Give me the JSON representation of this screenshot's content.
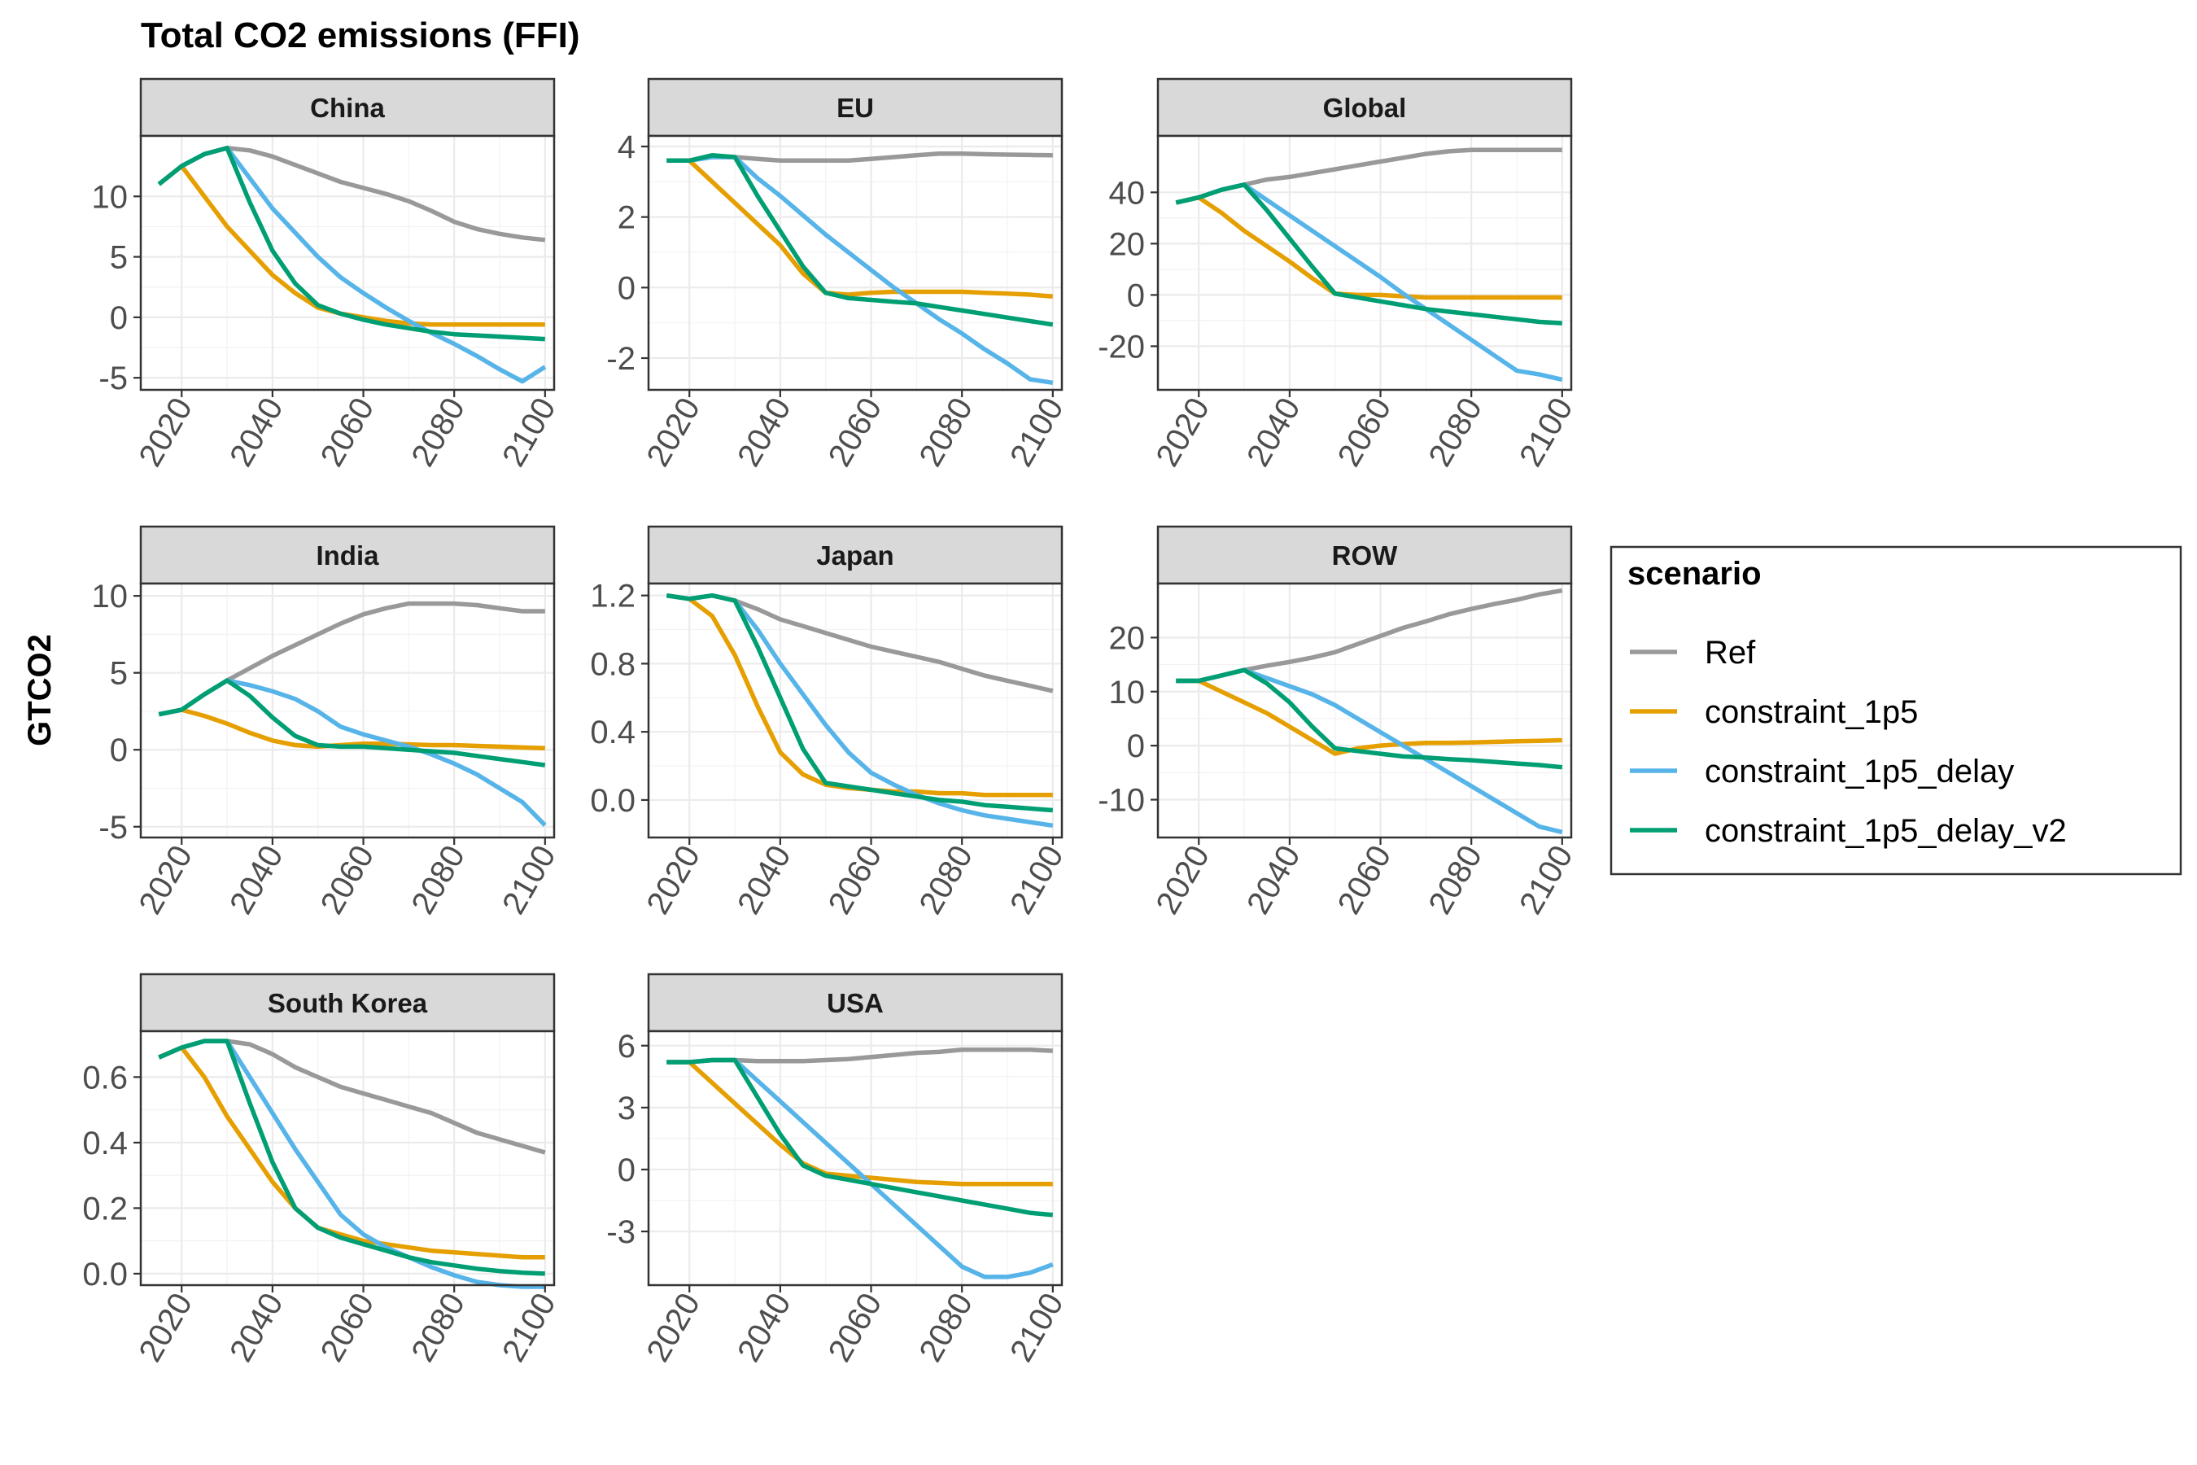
{
  "chart_data": {
    "type": "line",
    "title": "Total CO2 emissions (FFI)",
    "ylabel": "GTCO2",
    "xlabel": "",
    "x": [
      2015,
      2020,
      2025,
      2030,
      2035,
      2040,
      2045,
      2050,
      2055,
      2060,
      2065,
      2070,
      2075,
      2080,
      2085,
      2090,
      2095,
      2100
    ],
    "xticks": [
      2020,
      2040,
      2060,
      2080,
      2100
    ],
    "xlim": [
      2011,
      2102
    ],
    "grid": true,
    "legend": {
      "title": "scenario",
      "position": "right",
      "entries": [
        "Ref",
        "constraint_1p5",
        "constraint_1p5_delay",
        "constraint_1p5_delay_v2"
      ]
    },
    "colors": {
      "Ref": "#999999",
      "constraint_1p5": "#E69F00",
      "constraint_1p5_delay": "#56B4E9",
      "constraint_1p5_delay_v2": "#009E73"
    },
    "panels": [
      {
        "name": "China",
        "ylim": [
          -6,
          15
        ],
        "yticks": [
          -5,
          0,
          5,
          10
        ],
        "ytick_labels": [
          "-5",
          "0",
          "5",
          "10"
        ],
        "series": [
          {
            "name": "Ref",
            "values": [
              11,
              12.5,
              13.5,
              14,
              13.8,
              13.3,
              12.6,
              11.9,
              11.2,
              10.7,
              10.2,
              9.6,
              8.8,
              7.9,
              7.3,
              6.9,
              6.6,
              6.4
            ]
          },
          {
            "name": "constraint_1p5",
            "values": [
              11,
              12.5,
              10,
              7.5,
              5.5,
              3.5,
              2,
              0.8,
              0.3,
              0,
              -0.3,
              -0.5,
              -0.6,
              -0.6,
              -0.6,
              -0.6,
              -0.6,
              -0.6
            ]
          },
          {
            "name": "constraint_1p5_delay",
            "values": [
              11,
              12.5,
              13.5,
              14,
              11.5,
              9,
              7,
              5,
              3.3,
              2,
              0.8,
              -0.3,
              -1.3,
              -2.2,
              -3.2,
              -4.3,
              -5.3,
              -4.1
            ]
          },
          {
            "name": "constraint_1p5_delay_v2",
            "values": [
              11,
              12.5,
              13.5,
              14,
              9.5,
              5.5,
              2.8,
              1,
              0.3,
              -0.2,
              -0.6,
              -0.9,
              -1.2,
              -1.4,
              -1.5,
              -1.6,
              -1.7,
              -1.8
            ]
          }
        ]
      },
      {
        "name": "EU",
        "ylim": [
          -2.9,
          4.3
        ],
        "yticks": [
          -2,
          0,
          2,
          4
        ],
        "ytick_labels": [
          "-2",
          "0",
          "2",
          "4"
        ],
        "series": [
          {
            "name": "Ref",
            "values": [
              3.6,
              3.6,
              3.7,
              3.7,
              3.65,
              3.6,
              3.6,
              3.6,
              3.6,
              3.65,
              3.7,
              3.75,
              3.8,
              3.8,
              3.78,
              3.77,
              3.76,
              3.75
            ]
          },
          {
            "name": "constraint_1p5",
            "values": [
              3.6,
              3.6,
              3.0,
              2.4,
              1.8,
              1.2,
              0.4,
              -0.15,
              -0.2,
              -0.15,
              -0.12,
              -0.12,
              -0.12,
              -0.12,
              -0.15,
              -0.17,
              -0.2,
              -0.25
            ]
          },
          {
            "name": "constraint_1p5_delay",
            "values": [
              3.6,
              3.6,
              3.7,
              3.7,
              3.1,
              2.6,
              2.05,
              1.5,
              1.0,
              0.5,
              0.0,
              -0.45,
              -0.9,
              -1.3,
              -1.75,
              -2.15,
              -2.6,
              -2.7
            ]
          },
          {
            "name": "constraint_1p5_delay_v2",
            "values": [
              3.6,
              3.6,
              3.75,
              3.7,
              2.6,
              1.6,
              0.6,
              -0.15,
              -0.3,
              -0.35,
              -0.4,
              -0.45,
              -0.55,
              -0.65,
              -0.75,
              -0.85,
              -0.95,
              -1.05
            ]
          }
        ]
      },
      {
        "name": "Global",
        "ylim": [
          -37,
          62
        ],
        "yticks": [
          -20,
          0,
          20,
          40
        ],
        "ytick_labels": [
          "-20",
          "0",
          "20",
          "40"
        ],
        "series": [
          {
            "name": "Ref",
            "values": [
              36,
              38,
              41,
              43,
              45,
              46,
              47.5,
              49,
              50.5,
              52,
              53.5,
              55,
              56,
              56.5,
              56.5,
              56.5,
              56.5,
              56.5
            ]
          },
          {
            "name": "constraint_1p5",
            "values": [
              36,
              38,
              32,
              25,
              19,
              13,
              6.5,
              0.5,
              0,
              0,
              -0.5,
              -1,
              -1,
              -1,
              -1,
              -1,
              -1,
              -1
            ]
          },
          {
            "name": "constraint_1p5_delay",
            "values": [
              36,
              38,
              41,
              43,
              37,
              31,
              25,
              19,
              13,
              7,
              0.5,
              -5.5,
              -11.5,
              -17.5,
              -23.5,
              -29.5,
              -31,
              -33
            ]
          },
          {
            "name": "constraint_1p5_delay_v2",
            "values": [
              36,
              38,
              41,
              43,
              33,
              22,
              11,
              0.5,
              -1,
              -2.5,
              -4,
              -5.5,
              -6.5,
              -7.5,
              -8.5,
              -9.5,
              -10.5,
              -11
            ]
          }
        ]
      },
      {
        "name": "India",
        "ylim": [
          -5.7,
          10.8
        ],
        "yticks": [
          -5,
          0,
          5,
          10
        ],
        "ytick_labels": [
          "-5",
          "0",
          "5",
          "10"
        ],
        "series": [
          {
            "name": "Ref",
            "values": [
              2.3,
              2.6,
              3.6,
              4.5,
              5.3,
              6.1,
              6.8,
              7.5,
              8.2,
              8.8,
              9.2,
              9.5,
              9.5,
              9.5,
              9.4,
              9.2,
              9.0,
              9.0
            ]
          },
          {
            "name": "constraint_1p5",
            "values": [
              2.3,
              2.6,
              2.2,
              1.7,
              1.1,
              0.6,
              0.3,
              0.2,
              0.3,
              0.4,
              0.4,
              0.35,
              0.3,
              0.3,
              0.25,
              0.2,
              0.15,
              0.1
            ]
          },
          {
            "name": "constraint_1p5_delay",
            "values": [
              2.3,
              2.6,
              3.6,
              4.5,
              4.2,
              3.8,
              3.3,
              2.5,
              1.5,
              1.0,
              0.6,
              0.2,
              -0.3,
              -0.9,
              -1.6,
              -2.5,
              -3.4,
              -4.9
            ]
          },
          {
            "name": "constraint_1p5_delay_v2",
            "values": [
              2.3,
              2.6,
              3.6,
              4.5,
              3.5,
              2.1,
              0.9,
              0.3,
              0.2,
              0.2,
              0.1,
              0.0,
              -0.1,
              -0.2,
              -0.4,
              -0.6,
              -0.8,
              -1.0
            ]
          }
        ]
      },
      {
        "name": "Japan",
        "ylim": [
          -0.22,
          1.27
        ],
        "yticks": [
          0.0,
          0.4,
          0.8,
          1.2
        ],
        "ytick_labels": [
          "0.0",
          "0.4",
          "0.8",
          "1.2"
        ],
        "series": [
          {
            "name": "Ref",
            "values": [
              1.2,
              1.18,
              1.2,
              1.17,
              1.12,
              1.06,
              1.02,
              0.98,
              0.94,
              0.9,
              0.87,
              0.84,
              0.81,
              0.77,
              0.73,
              0.7,
              0.67,
              0.64
            ]
          },
          {
            "name": "constraint_1p5",
            "values": [
              1.2,
              1.18,
              1.08,
              0.85,
              0.55,
              0.28,
              0.15,
              0.09,
              0.07,
              0.06,
              0.05,
              0.05,
              0.04,
              0.04,
              0.03,
              0.03,
              0.03,
              0.03
            ]
          },
          {
            "name": "constraint_1p5_delay",
            "values": [
              1.2,
              1.18,
              1.2,
              1.17,
              1.0,
              0.8,
              0.62,
              0.44,
              0.28,
              0.16,
              0.09,
              0.03,
              -0.02,
              -0.06,
              -0.09,
              -0.11,
              -0.13,
              -0.15
            ]
          },
          {
            "name": "constraint_1p5_delay_v2",
            "values": [
              1.2,
              1.18,
              1.2,
              1.17,
              0.9,
              0.6,
              0.3,
              0.1,
              0.08,
              0.06,
              0.04,
              0.02,
              0.0,
              -0.01,
              -0.03,
              -0.04,
              -0.05,
              -0.06
            ]
          }
        ]
      },
      {
        "name": "ROW",
        "ylim": [
          -17,
          30
        ],
        "yticks": [
          -10,
          0,
          10,
          20
        ],
        "ytick_labels": [
          "-10",
          "0",
          "10",
          "20"
        ],
        "series": [
          {
            "name": "Ref",
            "values": [
              12,
              12,
              13,
              14,
              14.8,
              15.5,
              16.3,
              17.3,
              18.8,
              20.3,
              21.8,
              23,
              24.3,
              25.3,
              26.2,
              27,
              28,
              28.7
            ]
          },
          {
            "name": "constraint_1p5",
            "values": [
              12,
              12,
              10,
              8,
              6,
              3.5,
              1,
              -1.5,
              -0.5,
              0,
              0.3,
              0.5,
              0.5,
              0.6,
              0.7,
              0.8,
              0.9,
              1.0
            ]
          },
          {
            "name": "constraint_1p5_delay",
            "values": [
              12,
              12,
              13,
              14,
              12.5,
              11,
              9.5,
              7.5,
              5,
              2.5,
              0,
              -2.5,
              -5,
              -7.5,
              -10,
              -12.5,
              -15,
              -16
            ]
          },
          {
            "name": "constraint_1p5_delay_v2",
            "values": [
              12,
              12,
              13,
              14,
              11.5,
              8,
              3.5,
              -0.5,
              -1,
              -1.5,
              -2,
              -2.2,
              -2.5,
              -2.7,
              -3,
              -3.3,
              -3.6,
              -4
            ]
          }
        ]
      },
      {
        "name": "South Korea",
        "ylim": [
          -0.035,
          0.74
        ],
        "yticks": [
          0.0,
          0.2,
          0.4,
          0.6
        ],
        "ytick_labels": [
          "0.0",
          "0.2",
          "0.4",
          "0.6"
        ],
        "series": [
          {
            "name": "Ref",
            "values": [
              0.66,
              0.69,
              0.71,
              0.71,
              0.7,
              0.67,
              0.63,
              0.6,
              0.57,
              0.55,
              0.53,
              0.51,
              0.49,
              0.46,
              0.43,
              0.41,
              0.39,
              0.37
            ]
          },
          {
            "name": "constraint_1p5",
            "values": [
              0.66,
              0.69,
              0.6,
              0.48,
              0.38,
              0.28,
              0.2,
              0.14,
              0.12,
              0.1,
              0.09,
              0.08,
              0.07,
              0.065,
              0.06,
              0.055,
              0.05,
              0.05
            ]
          },
          {
            "name": "constraint_1p5_delay",
            "values": [
              0.66,
              0.69,
              0.71,
              0.71,
              0.6,
              0.49,
              0.38,
              0.28,
              0.18,
              0.12,
              0.08,
              0.05,
              0.02,
              -0.005,
              -0.025,
              -0.035,
              -0.04,
              -0.04
            ]
          },
          {
            "name": "constraint_1p5_delay_v2",
            "values": [
              0.66,
              0.69,
              0.71,
              0.71,
              0.52,
              0.34,
              0.2,
              0.14,
              0.11,
              0.09,
              0.07,
              0.05,
              0.035,
              0.025,
              0.015,
              0.008,
              0.003,
              0.0
            ]
          }
        ]
      },
      {
        "name": "USA",
        "ylim": [
          -5.6,
          6.7
        ],
        "yticks": [
          -3,
          0,
          3,
          6
        ],
        "ytick_labels": [
          "-3",
          "0",
          "3",
          "6"
        ],
        "series": [
          {
            "name": "Ref",
            "values": [
              5.2,
              5.2,
              5.3,
              5.3,
              5.25,
              5.25,
              5.25,
              5.3,
              5.35,
              5.45,
              5.55,
              5.65,
              5.7,
              5.8,
              5.8,
              5.8,
              5.8,
              5.75
            ]
          },
          {
            "name": "constraint_1p5",
            "values": [
              5.2,
              5.2,
              4.2,
              3.2,
              2.2,
              1.2,
              0.3,
              -0.2,
              -0.3,
              -0.4,
              -0.5,
              -0.6,
              -0.65,
              -0.7,
              -0.7,
              -0.7,
              -0.7,
              -0.7
            ]
          },
          {
            "name": "constraint_1p5_delay",
            "values": [
              5.2,
              5.2,
              5.3,
              5.3,
              4.3,
              3.3,
              2.3,
              1.3,
              0.3,
              -0.7,
              -1.7,
              -2.7,
              -3.7,
              -4.7,
              -5.2,
              -5.2,
              -5.0,
              -4.6
            ]
          },
          {
            "name": "constraint_1p5_delay_v2",
            "values": [
              5.2,
              5.2,
              5.3,
              5.3,
              3.5,
              1.7,
              0.2,
              -0.3,
              -0.5,
              -0.7,
              -0.9,
              -1.1,
              -1.3,
              -1.5,
              -1.7,
              -1.9,
              -2.1,
              -2.2
            ]
          }
        ]
      }
    ]
  }
}
